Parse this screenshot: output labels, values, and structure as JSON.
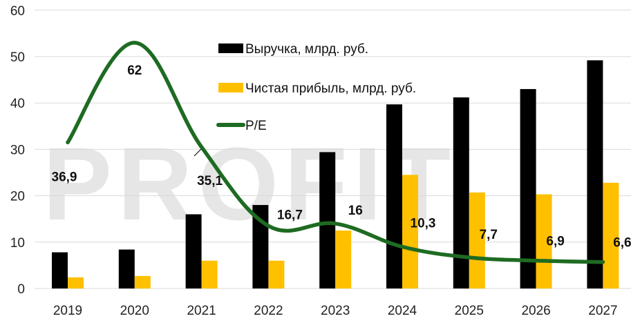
{
  "chart_data": {
    "type": "bar",
    "title": "",
    "xlabel": "",
    "ylabel": "",
    "ylim": [
      0,
      60
    ],
    "yticks": [
      0,
      10,
      20,
      30,
      40,
      50,
      60
    ],
    "grid": true,
    "legend_position": "inside-top-center",
    "watermark": "PROFIT",
    "categories": [
      "2019",
      "2020",
      "2021",
      "2022",
      "2023",
      "2024",
      "2025",
      "2026",
      "2027"
    ],
    "series": [
      {
        "name": "Выручка, млрд. руб.",
        "type": "bar",
        "color": "#000000",
        "values": [
          7.8,
          8.4,
          16.0,
          18.0,
          29.4,
          39.7,
          41.2,
          43.0,
          49.2
        ]
      },
      {
        "name": "Чистая прибыль, млрд. руб.",
        "type": "bar",
        "color": "#FFC000",
        "values": [
          2.4,
          2.7,
          6.0,
          6.0,
          12.5,
          24.5,
          20.7,
          20.3,
          22.8
        ]
      },
      {
        "name": "P/E",
        "type": "line",
        "color": "#1E6B22",
        "smooth": true,
        "values": [
          36.9,
          62,
          35.1,
          16.7,
          16,
          10.3,
          7.7,
          6.9,
          6.6
        ],
        "data_labels": [
          "36,9",
          "62",
          "35,1",
          "16,7",
          "16",
          "10,3",
          "7,7",
          "6,9",
          "6,6"
        ],
        "plotted_positions_on_left_axis": [
          31.5,
          53,
          30.5,
          13.5,
          14,
          9,
          6.7,
          6.0,
          5.7
        ]
      }
    ]
  },
  "legend": {
    "revenue": "Выручка, млрд. руб.",
    "profit": "Чистая прибыль, млрд. руб.",
    "pe": "P/E"
  }
}
